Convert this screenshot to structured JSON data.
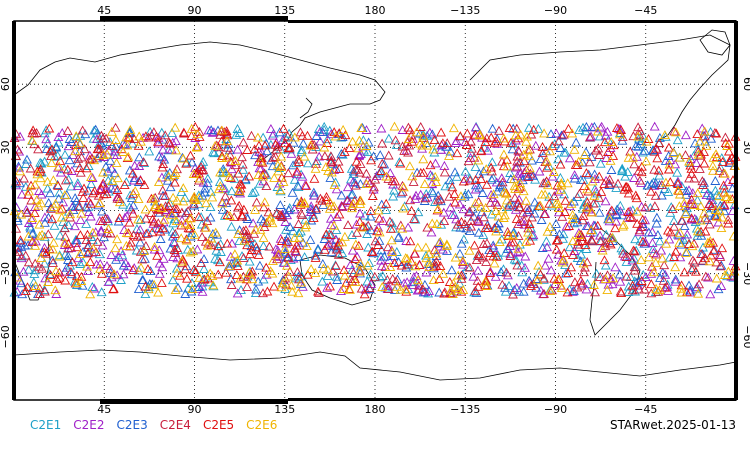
{
  "map": {
    "top_lon_labels": [
      "45",
      "90",
      "135",
      "180",
      "−135",
      "−90",
      "−45"
    ],
    "bottom_lon_labels": [
      "45",
      "90",
      "135",
      "180",
      "−135",
      "−90",
      "−45"
    ],
    "lat_labels": [
      "60",
      "30",
      "0",
      "−30",
      "−60"
    ],
    "lon_range": [
      0,
      360
    ],
    "lat_range": [
      -90,
      90
    ],
    "grid": "dotted",
    "marker": "open-triangle",
    "observations_lat_band": [
      -40,
      40
    ]
  },
  "legend": {
    "items": [
      {
        "label": "C2E1",
        "color": "#1ea0c8"
      },
      {
        "label": "C2E2",
        "color": "#a020c8"
      },
      {
        "label": "C2E3",
        "color": "#2060d0"
      },
      {
        "label": "C2E4",
        "color": "#c81e3c"
      },
      {
        "label": "C2E5",
        "color": "#e01010"
      },
      {
        "label": "C2E6",
        "color": "#f0b400"
      }
    ]
  },
  "footer": {
    "label": "STARwet.2025-01-13"
  }
}
